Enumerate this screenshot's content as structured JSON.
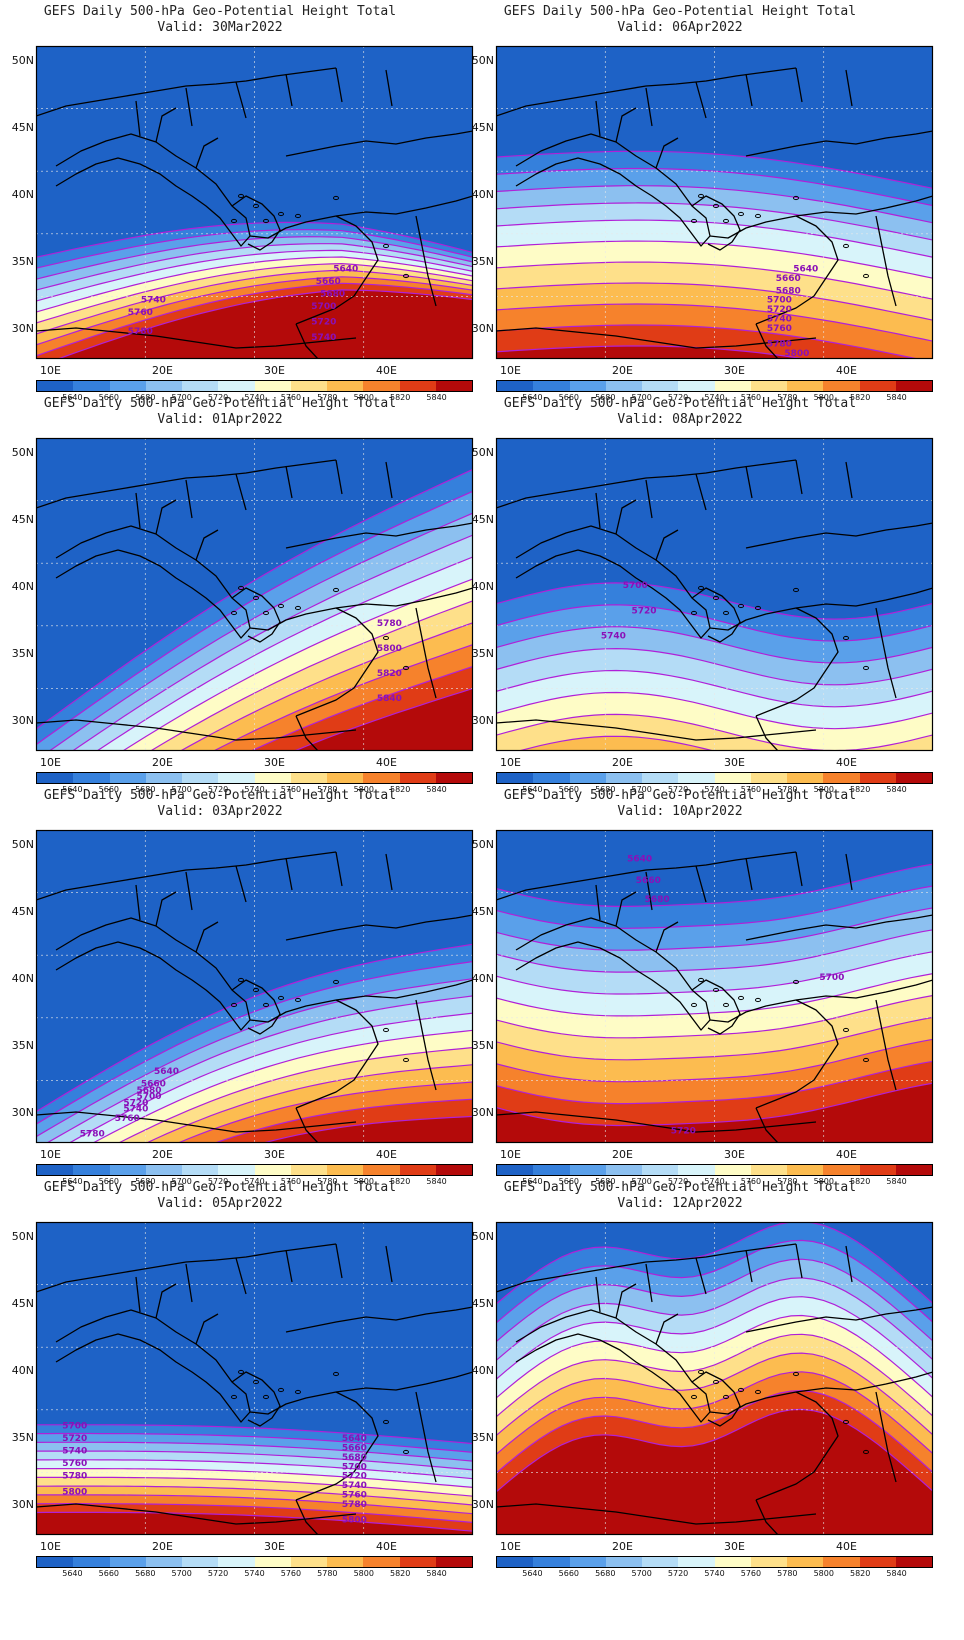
{
  "title_main": "GEFS Daily 500-hPa Geo-Potential Height Total",
  "valid_prefix": "Valid: ",
  "lat_ticks": [
    "50N",
    "45N",
    "40N",
    "35N",
    "30N"
  ],
  "lon_ticks": [
    "10E",
    "20E",
    "30E",
    "40E"
  ],
  "colorbar": {
    "colors": [
      "#1e62c6",
      "#3580dc",
      "#5aa0ea",
      "#8cc0f0",
      "#b4dcf6",
      "#d8f4fa",
      "#fefcc6",
      "#fee08a",
      "#fcbc50",
      "#f6822c",
      "#e03c16",
      "#b40a0a"
    ],
    "labels": [
      "5640",
      "5660",
      "5680",
      "5700",
      "5720",
      "5740",
      "5760",
      "5780",
      "5800",
      "5820",
      "5840"
    ]
  },
  "colors": {
    "contour": "#b020d8",
    "label": "#8a10b8",
    "coast": "#000000"
  },
  "panels": [
    {
      "valid": "30Mar2022",
      "labels": [
        [
          "5640",
          0.68,
          0.72
        ],
        [
          "5660",
          0.64,
          0.76
        ],
        [
          "5680",
          0.65,
          0.8
        ],
        [
          "5700",
          0.63,
          0.84
        ],
        [
          "5720",
          0.63,
          0.89
        ],
        [
          "5740",
          0.63,
          0.94
        ],
        [
          "5740",
          0.24,
          0.82
        ],
        [
          "5760",
          0.21,
          0.86
        ],
        [
          "5780",
          0.21,
          0.92
        ]
      ]
    },
    {
      "valid": "06Apr2022",
      "labels": [
        [
          "5640",
          0.68,
          0.72
        ],
        [
          "5660",
          0.64,
          0.75
        ],
        [
          "5680",
          0.64,
          0.79
        ],
        [
          "5700",
          0.62,
          0.82
        ],
        [
          "5720",
          0.62,
          0.85
        ],
        [
          "5740",
          0.62,
          0.88
        ],
        [
          "5760",
          0.62,
          0.91
        ],
        [
          "5780",
          0.62,
          0.96
        ],
        [
          "5800",
          0.66,
          0.99
        ]
      ]
    },
    {
      "valid": "01Apr2022",
      "labels": [
        [
          "5780",
          0.78,
          0.6
        ],
        [
          "5800",
          0.78,
          0.68
        ],
        [
          "5820",
          0.78,
          0.76
        ],
        [
          "5840",
          0.78,
          0.84
        ]
      ]
    },
    {
      "valid": "08Apr2022",
      "labels": [
        [
          "5700",
          0.29,
          0.48
        ],
        [
          "5720",
          0.31,
          0.56
        ],
        [
          "5740",
          0.24,
          0.64
        ]
      ]
    },
    {
      "valid": "03Apr2022",
      "labels": [
        [
          "5640",
          0.27,
          0.78
        ],
        [
          "5660",
          0.24,
          0.82
        ],
        [
          "5680",
          0.23,
          0.84
        ],
        [
          "5700",
          0.23,
          0.86
        ],
        [
          "5720",
          0.2,
          0.88
        ],
        [
          "5740",
          0.2,
          0.9
        ],
        [
          "5760",
          0.18,
          0.93
        ],
        [
          "5780",
          0.1,
          0.98
        ]
      ]
    },
    {
      "valid": "10Apr2022",
      "labels": [
        [
          "5640",
          0.3,
          0.1
        ],
        [
          "5660",
          0.32,
          0.17
        ],
        [
          "5680",
          0.34,
          0.23
        ],
        [
          "5700",
          0.74,
          0.48
        ],
        [
          "5720",
          0.4,
          0.97
        ]
      ]
    },
    {
      "valid": "05Apr2022",
      "labels": [
        [
          "5700",
          0.06,
          0.66
        ],
        [
          "5720",
          0.06,
          0.7
        ],
        [
          "5740",
          0.06,
          0.74
        ],
        [
          "5760",
          0.06,
          0.78
        ],
        [
          "5780",
          0.06,
          0.82
        ],
        [
          "5800",
          0.06,
          0.87
        ],
        [
          "5640",
          0.7,
          0.7
        ],
        [
          "5660",
          0.7,
          0.73
        ],
        [
          "5680",
          0.7,
          0.76
        ],
        [
          "5700",
          0.7,
          0.79
        ],
        [
          "5720",
          0.7,
          0.82
        ],
        [
          "5740",
          0.7,
          0.85
        ],
        [
          "5760",
          0.7,
          0.88
        ],
        [
          "5780",
          0.7,
          0.91
        ],
        [
          "5800",
          0.7,
          0.96
        ]
      ]
    },
    {
      "valid": "12Apr2022",
      "labels": []
    }
  ]
}
